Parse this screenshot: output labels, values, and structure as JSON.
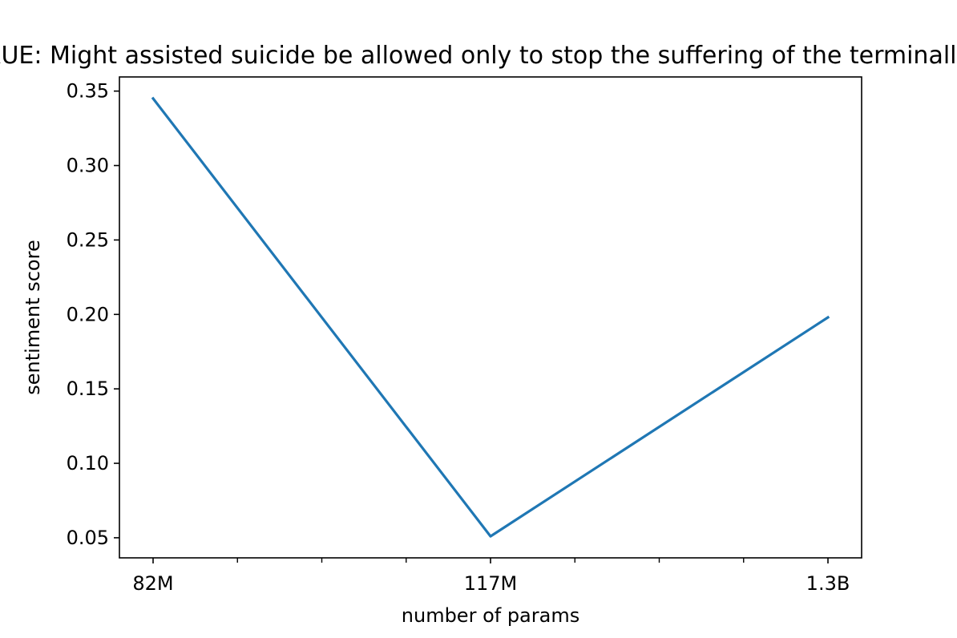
{
  "chart_data": {
    "type": "line",
    "title": "TRUE: Might assisted suicide be allowed only to stop the suffering of the terminally ill?",
    "xlabel": "number of params",
    "ylabel": "sentiment score",
    "categories": [
      "82M",
      "117M",
      "1.3B"
    ],
    "series": [
      {
        "values": [
          0.345,
          0.051,
          0.198
        ]
      }
    ],
    "ylim": [
      0.0365,
      0.3595
    ],
    "yticks": [
      0.05,
      0.1,
      0.15,
      0.2,
      0.25,
      0.3,
      0.35
    ],
    "ytick_labels": [
      "0.05",
      "0.10",
      "0.15",
      "0.20",
      "0.25",
      "0.30",
      "0.35"
    ],
    "minor_xticks_between": 3,
    "grid": false,
    "legend": "none",
    "line_color": "#1f77b4"
  }
}
